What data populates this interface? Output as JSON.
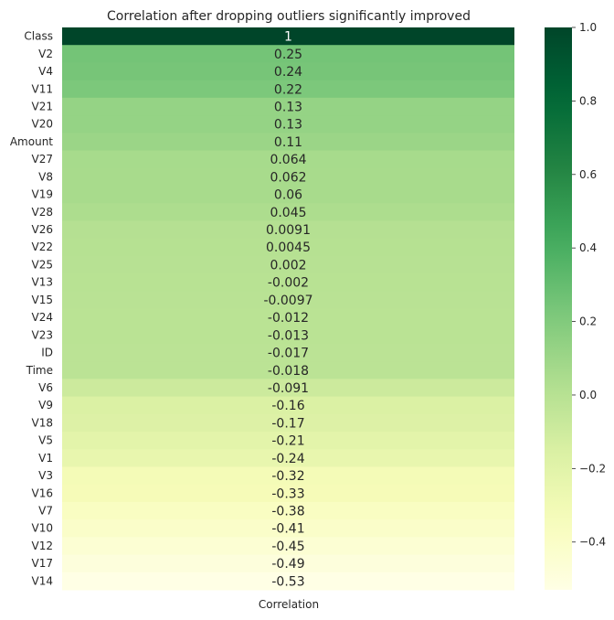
{
  "chart_data": {
    "type": "heatmap",
    "title": "Correlation after dropping outliers significantly improved",
    "x_categories": [
      "Correlation"
    ],
    "y_categories": [
      "Class",
      "V2",
      "V4",
      "V11",
      "V21",
      "V20",
      "Amount",
      "V27",
      "V8",
      "V19",
      "V28",
      "V26",
      "V22",
      "V25",
      "V13",
      "V15",
      "V24",
      "V23",
      "ID",
      "Time",
      "V6",
      "V9",
      "V18",
      "V5",
      "V1",
      "V3",
      "V16",
      "V7",
      "V10",
      "V12",
      "V17",
      "V14"
    ],
    "values": [
      1,
      0.25,
      0.24,
      0.22,
      0.13,
      0.13,
      0.11,
      0.064,
      0.062,
      0.06,
      0.045,
      0.0091,
      0.0045,
      0.002,
      -0.002,
      -0.0097,
      -0.012,
      -0.013,
      -0.017,
      -0.018,
      -0.091,
      -0.16,
      -0.17,
      -0.21,
      -0.24,
      -0.32,
      -0.33,
      -0.38,
      -0.41,
      -0.45,
      -0.49,
      -0.53
    ],
    "annotations": [
      "1",
      "0.25",
      "0.24",
      "0.22",
      "0.13",
      "0.13",
      "0.11",
      "0.064",
      "0.062",
      "0.06",
      "0.045",
      "0.0091",
      "0.0045",
      "0.002",
      "-0.002",
      "-0.0097",
      "-0.012",
      "-0.013",
      "-0.017",
      "-0.018",
      "-0.091",
      "-0.16",
      "-0.17",
      "-0.21",
      "-0.24",
      "-0.32",
      "-0.33",
      "-0.38",
      "-0.41",
      "-0.45",
      "-0.49",
      "-0.53"
    ],
    "colormap": "YlGn",
    "vmin": -0.53,
    "vmax": 1.0,
    "colorbar_ticks": [
      1.0,
      0.8,
      0.6,
      0.4,
      0.2,
      0.0,
      -0.2,
      -0.4
    ],
    "colorbar_tick_labels": [
      "1.0",
      "0.8",
      "0.6",
      "0.4",
      "0.2",
      "0.0",
      "−0.2",
      "−0.4"
    ]
  }
}
